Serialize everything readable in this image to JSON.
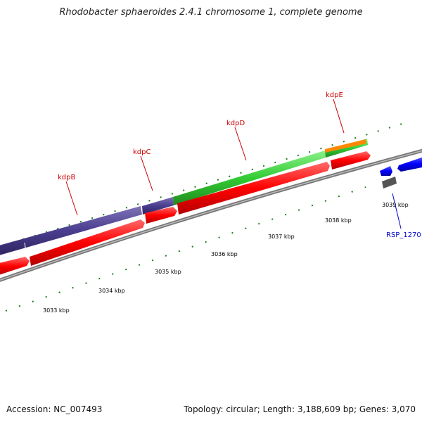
{
  "title": "Rhodobacter sphaeroides 2.4.1 chromosome 1, complete genome",
  "genes": [
    {
      "name": "kdpB"
    },
    {
      "name": "kdpC"
    },
    {
      "name": "kdpD"
    },
    {
      "name": "kdpE"
    }
  ],
  "locus": {
    "name": "RSP_1270"
  },
  "ticks": [
    "3033 kbp",
    "3034 kbp",
    "3035 kbp",
    "3036 kbp",
    "3037 kbp",
    "3038 kbp",
    "3039 kbp"
  ],
  "footer": {
    "accession": "Accession: NC_007493",
    "summary": "Topology: circular; Length: 3,188,609 bp; Genes: 3,070"
  },
  "colors": {
    "cds": "#ff0000",
    "kdpB_kdpC_feature": "#4a3d8f",
    "kdpD_feature": "#33cc33",
    "kdpE_overlay": "#ff8800",
    "other_strand": "#0000ff",
    "gray_feature": "#555555",
    "backbone": "#888888",
    "ticks": "#1a7a1a"
  }
}
